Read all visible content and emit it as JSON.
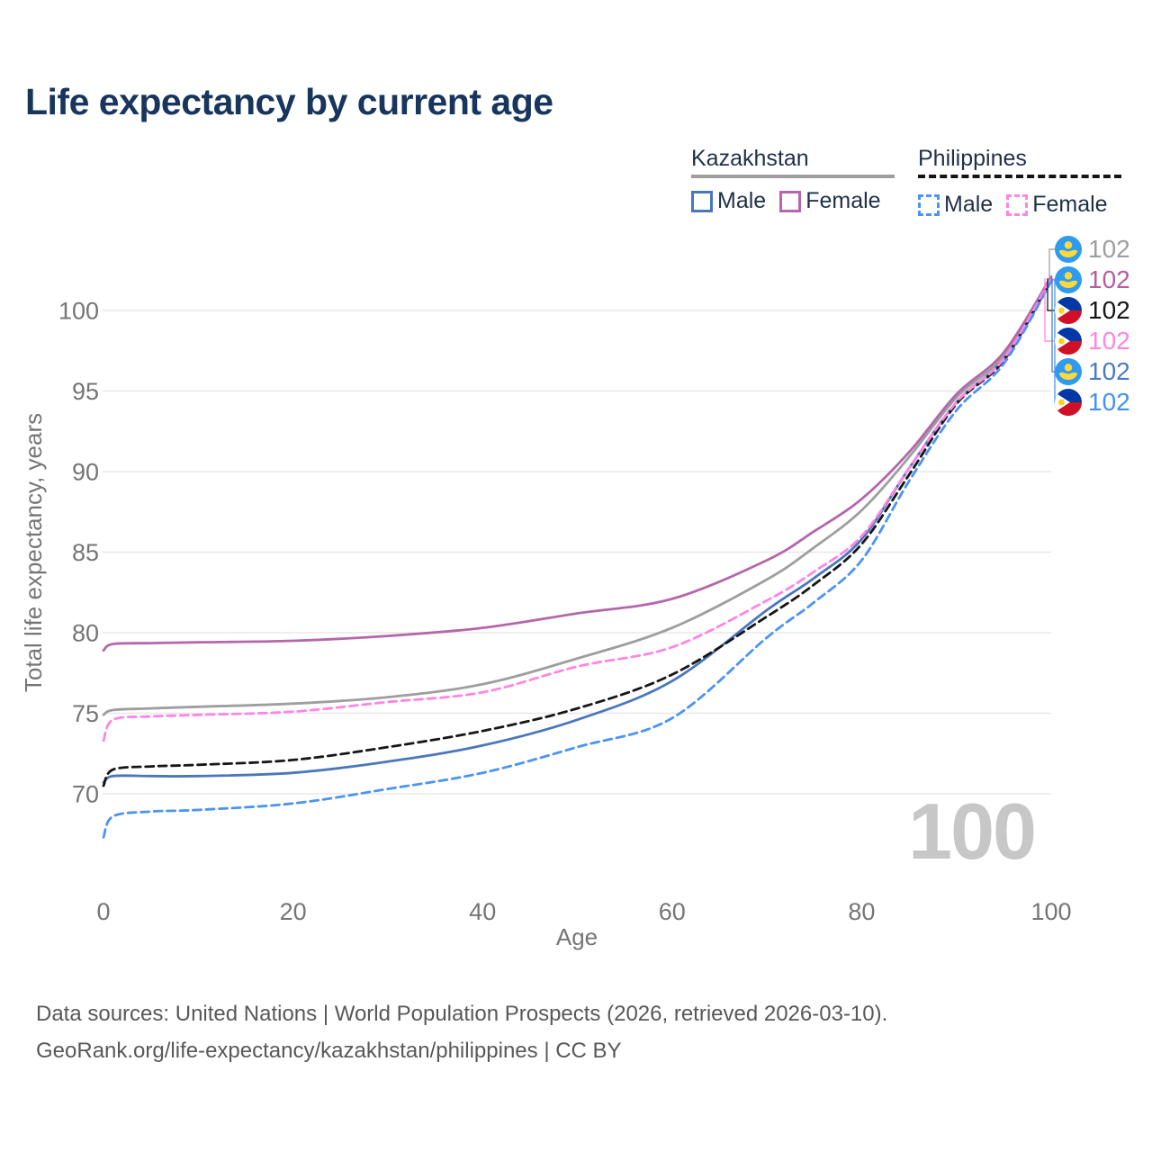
{
  "title": "Life expectancy by current age",
  "watermark": "100",
  "legend": {
    "groups": [
      {
        "country": "Kazakhstan",
        "line_style": "solid",
        "rule_color": "#9e9e9e",
        "items": [
          {
            "label": "Male",
            "color": "#4a77bb"
          },
          {
            "label": "Female",
            "color": "#b467ab"
          }
        ]
      },
      {
        "country": "Philippines",
        "line_style": "dashed",
        "rule_color": "#141414",
        "items": [
          {
            "label": "Male",
            "color": "#4b93f5"
          },
          {
            "label": "Female",
            "color": "#ff85e3"
          }
        ]
      }
    ]
  },
  "chart_data": {
    "type": "line",
    "title": "Life expectancy by current age",
    "xlabel": "Age",
    "ylabel": "Total life expectancy, years",
    "xlim": [
      0,
      100
    ],
    "ylim": [
      66.5,
      103
    ],
    "x_ticks": [
      0,
      20,
      40,
      60,
      80,
      100
    ],
    "y_ticks": [
      70,
      75,
      80,
      85,
      90,
      95,
      100
    ],
    "grid": "horizontal-only",
    "legend_position": "top-right",
    "x": [
      0,
      1,
      5,
      10,
      20,
      30,
      40,
      50,
      60,
      70,
      75,
      80,
      85,
      90,
      95,
      100
    ],
    "series": [
      {
        "name": "Kazakhstan Both sexes",
        "color": "#9e9e9e",
        "dashed": false,
        "end_label": "102",
        "values": [
          74.9,
          75.2,
          75.3,
          75.4,
          75.6,
          76.0,
          76.8,
          78.4,
          80.3,
          83.3,
          85.3,
          87.6,
          90.9,
          94.6,
          97.2,
          102
        ]
      },
      {
        "name": "Kazakhstan Female",
        "color": "#b467ab",
        "dashed": false,
        "end_label": "102",
        "values": [
          78.9,
          79.3,
          79.35,
          79.4,
          79.5,
          79.8,
          80.3,
          81.2,
          82.1,
          84.5,
          86.3,
          88.3,
          91.2,
          94.8,
          97.4,
          102.1
        ]
      },
      {
        "name": "Kazakhstan Male",
        "color": "#4a77bb",
        "dashed": false,
        "end_label": "102",
        "values": [
          70.7,
          71.1,
          71.1,
          71.1,
          71.3,
          72.0,
          73.0,
          74.6,
          77.0,
          81.4,
          83.4,
          85.8,
          90.2,
          94.3,
          97.0,
          101.9
        ]
      },
      {
        "name": "Philippines Both sexes",
        "color": "#161616",
        "dashed": true,
        "end_label": "102",
        "values": [
          70.5,
          71.5,
          71.7,
          71.8,
          72.1,
          72.9,
          73.9,
          75.3,
          77.4,
          81.0,
          83.0,
          85.5,
          89.8,
          94.2,
          96.9,
          101.9
        ]
      },
      {
        "name": "Philippines Female",
        "color": "#ff85e3",
        "dashed": true,
        "end_label": "102",
        "values": [
          73.3,
          74.6,
          74.8,
          74.9,
          75.1,
          75.7,
          76.3,
          77.9,
          79.1,
          82.0,
          83.8,
          86.0,
          90.2,
          94.3,
          97.0,
          102.0
        ]
      },
      {
        "name": "Philippines Male",
        "color": "#4b93f5",
        "dashed": true,
        "end_label": "102",
        "values": [
          67.3,
          68.6,
          68.9,
          69.0,
          69.4,
          70.3,
          71.3,
          72.9,
          74.7,
          79.7,
          81.9,
          84.5,
          89.4,
          93.8,
          96.7,
          101.8
        ]
      }
    ]
  },
  "end_labels": [
    {
      "flag": "kazakhstan-flag-icon",
      "value": "102",
      "color": "#9e9e9e"
    },
    {
      "flag": "kazakhstan-flag-icon",
      "value": "102",
      "color": "#b2609f"
    },
    {
      "flag": "philippines-flag-icon",
      "value": "102",
      "color": "#161616"
    },
    {
      "flag": "philippines-flag-icon",
      "value": "102",
      "color": "#ff85e3"
    },
    {
      "flag": "kazakhstan-flag-icon",
      "value": "102",
      "color": "#4a7cc2"
    },
    {
      "flag": "philippines-flag-icon",
      "value": "102",
      "color": "#4491f2"
    }
  ],
  "axes": {
    "x_tick_labels": [
      "0",
      "20",
      "40",
      "60",
      "80",
      "100"
    ],
    "y_tick_labels": [
      "70",
      "75",
      "80",
      "85",
      "90",
      "95",
      "100"
    ],
    "x_title": "Age",
    "y_title": "Total life expectancy, years"
  },
  "footer": {
    "line1": "Data sources: United Nations | World Population Prospects (2026, retrieved 2026-03-10).",
    "line2": "GeoRank.org/life-expectancy/kazakhstan/philippines | CC BY"
  }
}
